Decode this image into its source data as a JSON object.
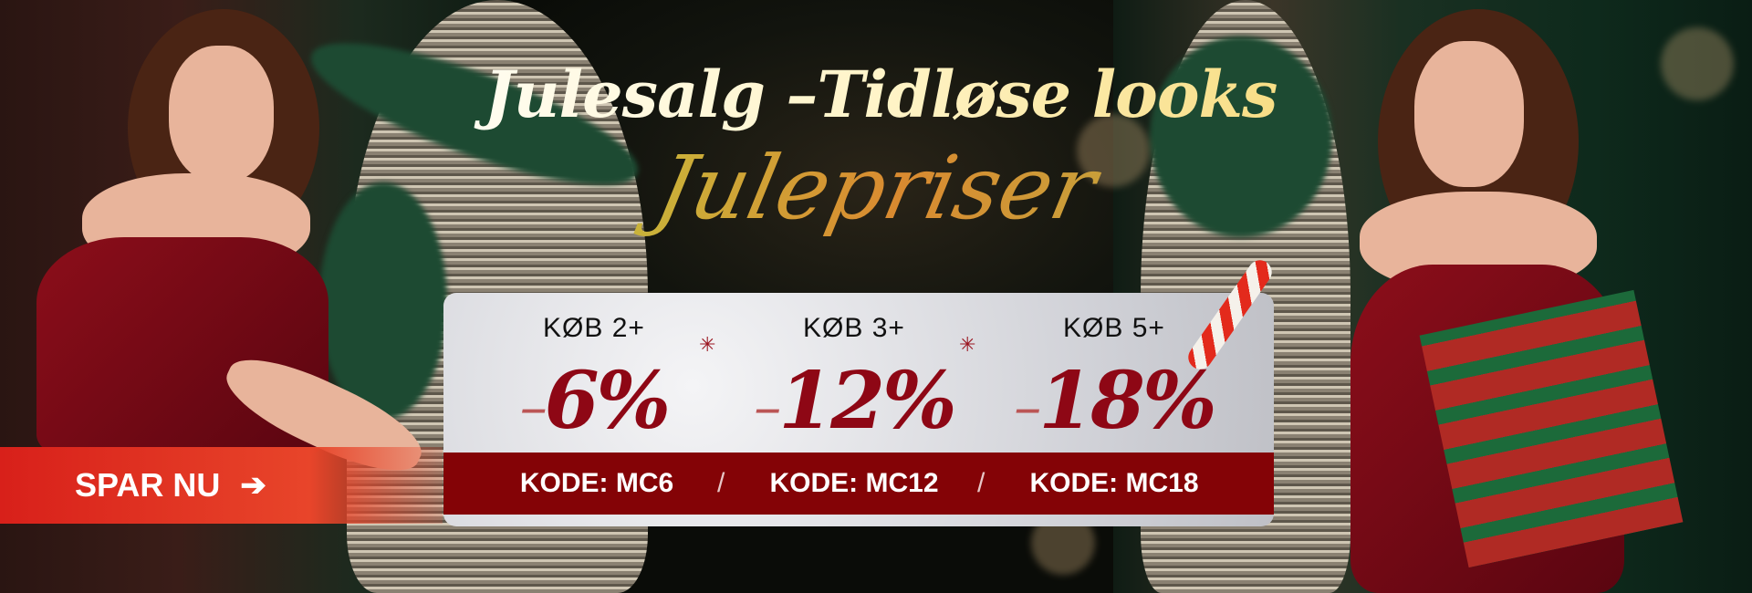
{
  "headline": "Julesalg –Tidløse looks",
  "subheadline": "Julepriser",
  "offers": [
    {
      "buy": "KØB 2+",
      "discount": "6%",
      "code": "KODE: MC6"
    },
    {
      "buy": "KØB 3+",
      "discount": "12%",
      "code": "KODE: MC12"
    },
    {
      "buy": "KØB 5+",
      "discount": "18%",
      "code": "KODE: MC18"
    }
  ],
  "discount_prefix": "–",
  "cta": {
    "label": "SPAR NU",
    "icon": "arrow-right-icon"
  },
  "colors": {
    "accent_red": "#840306",
    "discount_red": "#8e0715",
    "cta_red": "#d8201a",
    "gold": "#f7dc80"
  }
}
